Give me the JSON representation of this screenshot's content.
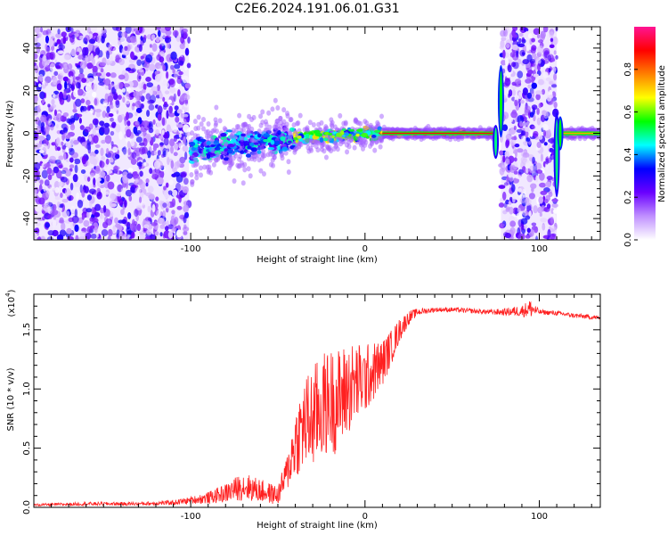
{
  "title": "C2E6.2024.191.06.01.G31",
  "chart_data": [
    {
      "type": "heatmap",
      "xlabel": "Height of straight line (km)",
      "ylabel": "Frequency (Hz)",
      "xlim": [
        -190,
        135
      ],
      "ylim": [
        -50,
        50
      ],
      "x_ticks": [
        -100,
        0,
        100
      ],
      "x_tick_labels": [
        "-100",
        "0",
        "100"
      ],
      "y_ticks": [
        -40,
        -20,
        0,
        20,
        40
      ],
      "y_tick_labels": [
        "-40",
        "-20",
        "0",
        "20",
        "40"
      ],
      "colorbar": {
        "label": "Normalized spectral amplitude",
        "range": [
          0,
          1
        ],
        "ticks": [
          0.0,
          0.2,
          0.4,
          0.6,
          0.8
        ],
        "tick_labels": [
          "0.0",
          "0.2",
          "0.4",
          "0.6",
          "0.8"
        ],
        "colormap": [
          "#ffffff",
          "#c090ff",
          "#6a00ff",
          "#0000ff",
          "#00ffff",
          "#00ff00",
          "#ffff00",
          "#ff8000",
          "#ff0000",
          "#ff1493"
        ]
      },
      "regions": [
        {
          "kind": "noise",
          "x": [
            -190,
            -101
          ],
          "f": [
            -50,
            50
          ],
          "amp": 0.25
        },
        {
          "kind": "noise",
          "x": [
            78,
            110
          ],
          "f": [
            -50,
            50
          ],
          "amp": 0.25
        },
        {
          "kind": "signal",
          "x": [
            -100,
            -40
          ],
          "f_start": -8,
          "f_end": -2,
          "spread": 5,
          "amp": 0.45
        },
        {
          "kind": "signal",
          "x": [
            -40,
            10
          ],
          "f_start": -2,
          "f_end": 0,
          "spread": 2.5,
          "amp": 0.65
        },
        {
          "kind": "signal",
          "x": [
            10,
            75
          ],
          "f_start": 0,
          "f_end": 0,
          "spread": 0.8,
          "amp": 0.9
        },
        {
          "kind": "signal",
          "x": [
            110,
            135
          ],
          "f_start": 0,
          "f_end": 0,
          "spread": 0.8,
          "amp": 0.75
        },
        {
          "kind": "spike",
          "x": 75,
          "f": [
            -12,
            4
          ],
          "amp": 0.3
        },
        {
          "kind": "spike",
          "x": 78,
          "f": [
            -2,
            32
          ],
          "amp": 0.35
        },
        {
          "kind": "spike",
          "x": 110,
          "f": [
            -30,
            10
          ],
          "amp": 0.3
        },
        {
          "kind": "spike",
          "x": 112,
          "f": [
            -8,
            8
          ],
          "amp": 0.35
        }
      ]
    },
    {
      "type": "line",
      "xlabel": "Height of straight line (km)",
      "ylabel": "SNR (10 * v/v)",
      "y_multiplier_label": "(x10",
      "y_multiplier_exp": "4",
      "y_multiplier_close": ")",
      "xlim": [
        -190,
        135
      ],
      "ylim": [
        0,
        1.8
      ],
      "x_ticks": [
        -100,
        0,
        100
      ],
      "x_tick_labels": [
        "-100",
        "0",
        "100"
      ],
      "y_ticks": [
        0,
        0.5,
        1.0,
        1.5
      ],
      "y_tick_labels": [
        "0.0",
        "0.5",
        "1.0",
        "1.5"
      ],
      "series": [
        {
          "color": "#ff2020",
          "x": [
            -190,
            -160,
            -130,
            -110,
            -100,
            -90,
            -80,
            -70,
            -60,
            -50,
            -45,
            -40,
            -35,
            -30,
            -25,
            -20,
            -15,
            -10,
            -5,
            0,
            5,
            10,
            15,
            20,
            25,
            30,
            40,
            50,
            60,
            70,
            80,
            90,
            95,
            100,
            110,
            120,
            135
          ],
          "y": [
            0.02,
            0.03,
            0.03,
            0.04,
            0.06,
            0.08,
            0.12,
            0.18,
            0.14,
            0.1,
            0.28,
            0.55,
            0.7,
            0.75,
            0.85,
            0.9,
            0.9,
            1.0,
            1.05,
            1.08,
            1.15,
            1.22,
            1.35,
            1.5,
            1.6,
            1.65,
            1.67,
            1.67,
            1.66,
            1.65,
            1.65,
            1.66,
            1.68,
            1.65,
            1.64,
            1.62,
            1.6
          ],
          "noise": [
            0.01,
            0.015,
            0.015,
            0.02,
            0.03,
            0.05,
            0.08,
            0.12,
            0.1,
            0.08,
            0.15,
            0.3,
            0.4,
            0.45,
            0.45,
            0.45,
            0.45,
            0.4,
            0.35,
            0.3,
            0.25,
            0.2,
            0.15,
            0.1,
            0.06,
            0.03,
            0.02,
            0.02,
            0.02,
            0.02,
            0.03,
            0.05,
            0.08,
            0.02,
            0.02,
            0.02,
            0.02
          ]
        }
      ]
    }
  ]
}
